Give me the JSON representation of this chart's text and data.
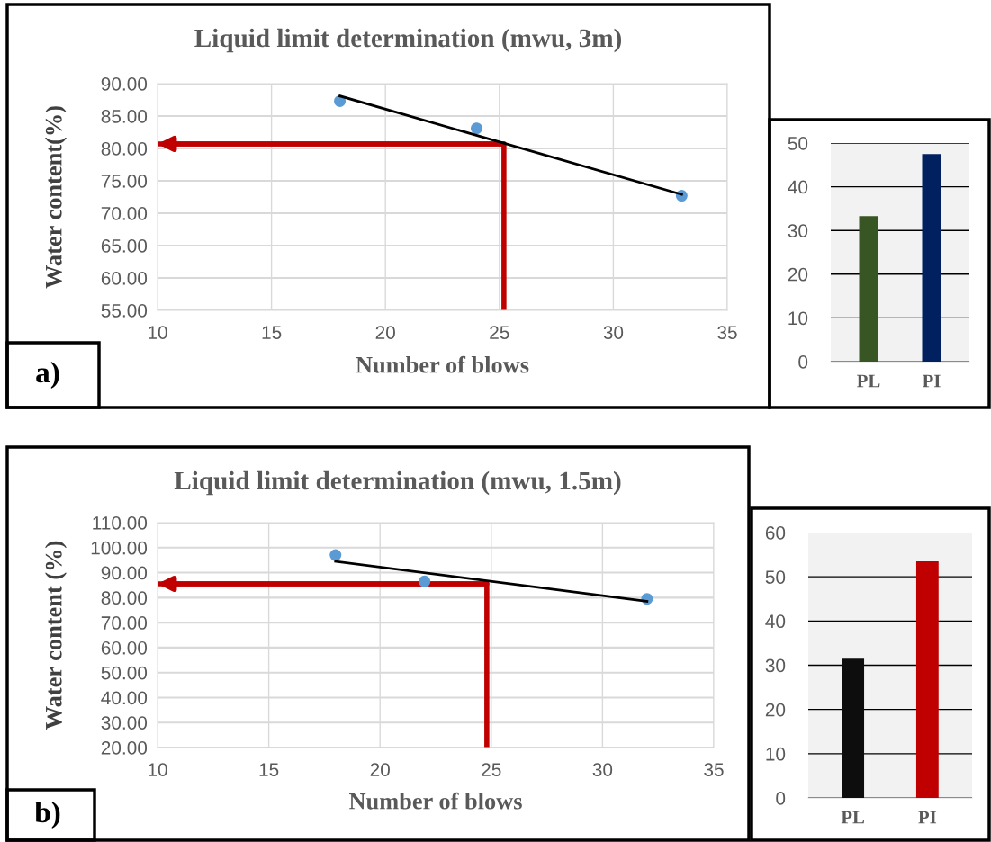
{
  "chart_data": [
    {
      "type": "scatter",
      "title": "Liquid limit determination (mwu, 3m)",
      "xlabel": "Number of blows",
      "ylabel": "Water content(%)",
      "xlim": [
        10,
        35
      ],
      "xticks": [
        10,
        15,
        20,
        25,
        30,
        35
      ],
      "ylim": [
        55,
        90
      ],
      "yticks": [
        {
          "value": 55,
          "label": "55.00"
        },
        {
          "value": 60,
          "label": "60.00"
        },
        {
          "value": 65,
          "label": "65.00"
        },
        {
          "value": 70,
          "label": "70.00"
        },
        {
          "value": 75,
          "label": "75.00"
        },
        {
          "value": 80,
          "label": "80.00"
        },
        {
          "value": 85,
          "label": "85.00"
        },
        {
          "value": 90,
          "label": "90.00"
        }
      ],
      "grid": true,
      "annotations": [
        "a)"
      ],
      "series": [
        {
          "type": "scatter",
          "marker": "circle",
          "color": "#5b9bd5",
          "x": [
            18,
            24,
            33
          ],
          "values": [
            87.3,
            83.1,
            72.7
          ]
        },
        {
          "type": "line",
          "marker": "none",
          "color": "#000000",
          "x": [
            18,
            33
          ],
          "values": [
            88.1,
            72.9
          ]
        },
        {
          "type": "line",
          "marker": "none",
          "color": "#c00000",
          "x": [
            25.2,
            25.2,
            10
          ],
          "values": [
            55,
            80.7,
            80.7
          ]
        }
      ]
    },
    {
      "type": "bar",
      "categories": [
        "PL",
        "PI"
      ],
      "values": [
        33.3,
        47.5
      ],
      "colors": [
        "#375623",
        "#002060"
      ],
      "ylim": [
        0,
        50
      ],
      "yticks": [
        0,
        10,
        20,
        30,
        40,
        50
      ],
      "grid": "y"
    },
    {
      "type": "scatter",
      "title": "Liquid limit determination (mwu, 1.5m)",
      "xlabel": "Number of blows",
      "ylabel": "Water content (%)",
      "xlim": [
        10,
        35
      ],
      "xticks": [
        10,
        15,
        20,
        25,
        30,
        35
      ],
      "ylim": [
        20,
        110
      ],
      "yticks": [
        {
          "value": 20,
          "label": "20.00"
        },
        {
          "value": 30,
          "label": "30.00"
        },
        {
          "value": 40,
          "label": "40.00"
        },
        {
          "value": 50,
          "label": "50.00"
        },
        {
          "value": 60,
          "label": "60.00"
        },
        {
          "value": 70,
          "label": "70.00"
        },
        {
          "value": 80,
          "label": "80.00"
        },
        {
          "value": 90,
          "label": "90.00"
        },
        {
          "value": 100,
          "label": "100.00"
        },
        {
          "value": 110,
          "label": "110.00"
        }
      ],
      "grid": true,
      "annotations": [
        "b)"
      ],
      "series": [
        {
          "type": "scatter",
          "marker": "circle",
          "color": "#5b9bd5",
          "x": [
            18,
            22,
            32
          ],
          "values": [
            97,
            86.5,
            79.5
          ]
        },
        {
          "type": "line",
          "marker": "none",
          "color": "#000000",
          "x": [
            18,
            32
          ],
          "values": [
            94.5,
            78.5
          ]
        },
        {
          "type": "line",
          "marker": "none",
          "color": "#c00000",
          "x": [
            24.8,
            24.8,
            10
          ],
          "values": [
            20,
            85.5,
            85.5
          ]
        }
      ]
    },
    {
      "type": "bar",
      "categories": [
        "PL",
        "PI"
      ],
      "values": [
        31.5,
        53.5
      ],
      "colors": [
        "#0d0d0d",
        "#c00000"
      ],
      "ylim": [
        0,
        60
      ],
      "yticks": [
        0,
        10,
        20,
        30,
        40,
        50,
        60
      ],
      "grid": "y"
    }
  ]
}
